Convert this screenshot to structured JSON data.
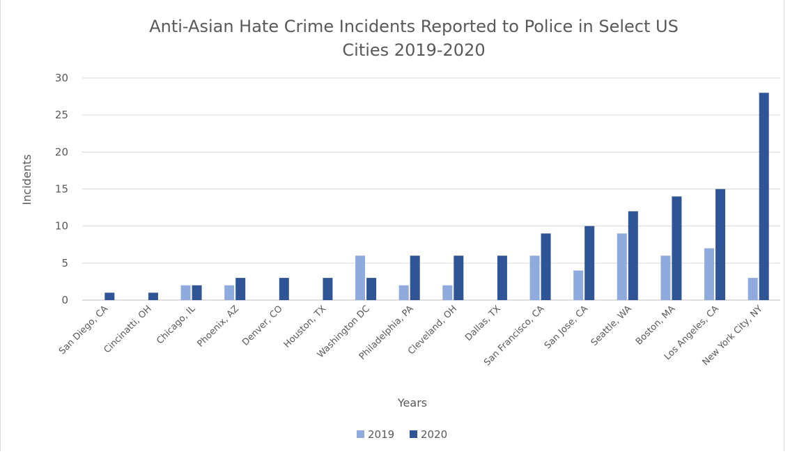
{
  "chart_data": {
    "type": "bar",
    "title_lines": [
      "Anti-Asian Hate Crime Incidents Reported to Police in Select US",
      "Cities 2019-2020"
    ],
    "xlabel": "Years",
    "ylabel": "Incidents",
    "ylim": [
      0,
      30
    ],
    "yticks": [
      0,
      5,
      10,
      15,
      20,
      25,
      30
    ],
    "grid": true,
    "legend_position": "bottom",
    "categories": [
      "San Diego, CA",
      "Cincinatti, OH",
      "Chicago, IL",
      "Phoenix, AZ",
      "Denver, CO",
      "Houston, TX",
      "Washington DC",
      "Philadelphia, PA",
      "Cleveland, OH",
      "Dallas, TX",
      "San Francisco, CA",
      "San Jose, CA",
      "Seattle, WA",
      "Boston, MA",
      "Los Angeles, CA",
      "New York City, NY"
    ],
    "series": [
      {
        "name": "2019",
        "color": "#8faadc",
        "values": [
          0,
          0,
          2,
          2,
          0,
          0,
          6,
          2,
          2,
          0,
          6,
          4,
          9,
          6,
          7,
          3
        ]
      },
      {
        "name": "2020",
        "color": "#2f5597",
        "values": [
          1,
          1,
          2,
          3,
          3,
          3,
          3,
          6,
          6,
          6,
          9,
          10,
          12,
          14,
          15,
          28
        ]
      }
    ]
  }
}
